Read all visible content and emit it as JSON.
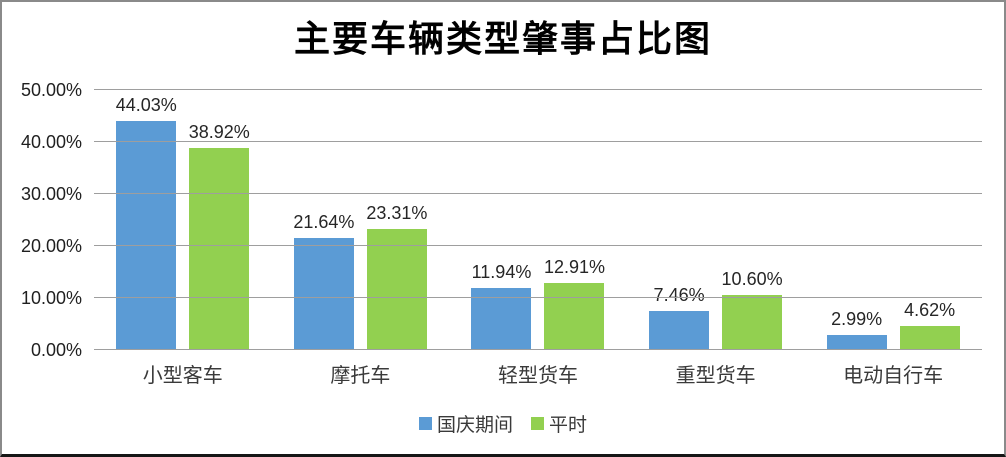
{
  "chart_data": {
    "type": "bar",
    "title": "主要车辆类型肇事占比图",
    "categories": [
      "小型客车",
      "摩托车",
      "轻型货车",
      "重型货车",
      "电动自行车"
    ],
    "series": [
      {
        "name": "国庆期间",
        "color": "#5B9BD5",
        "values": [
          44.03,
          21.64,
          11.94,
          7.46,
          2.99
        ],
        "labels": [
          "44.03%",
          "21.64%",
          "11.94%",
          "7.46%",
          "2.99%"
        ]
      },
      {
        "name": "平时",
        "color": "#92D050",
        "values": [
          38.92,
          23.31,
          12.91,
          10.6,
          4.62
        ],
        "labels": [
          "38.92%",
          "23.31%",
          "12.91%",
          "10.60%",
          "4.62%"
        ]
      }
    ],
    "xlabel": "",
    "ylabel": "",
    "ylim": [
      0,
      50
    ],
    "y_tick_step": 10,
    "y_ticks": [
      "0.00%",
      "10.00%",
      "20.00%",
      "30.00%",
      "40.00%",
      "50.00%"
    ],
    "grid": true,
    "legend_position": "bottom",
    "gridline_color": "#9e9e9e",
    "background": "#ffffff"
  }
}
